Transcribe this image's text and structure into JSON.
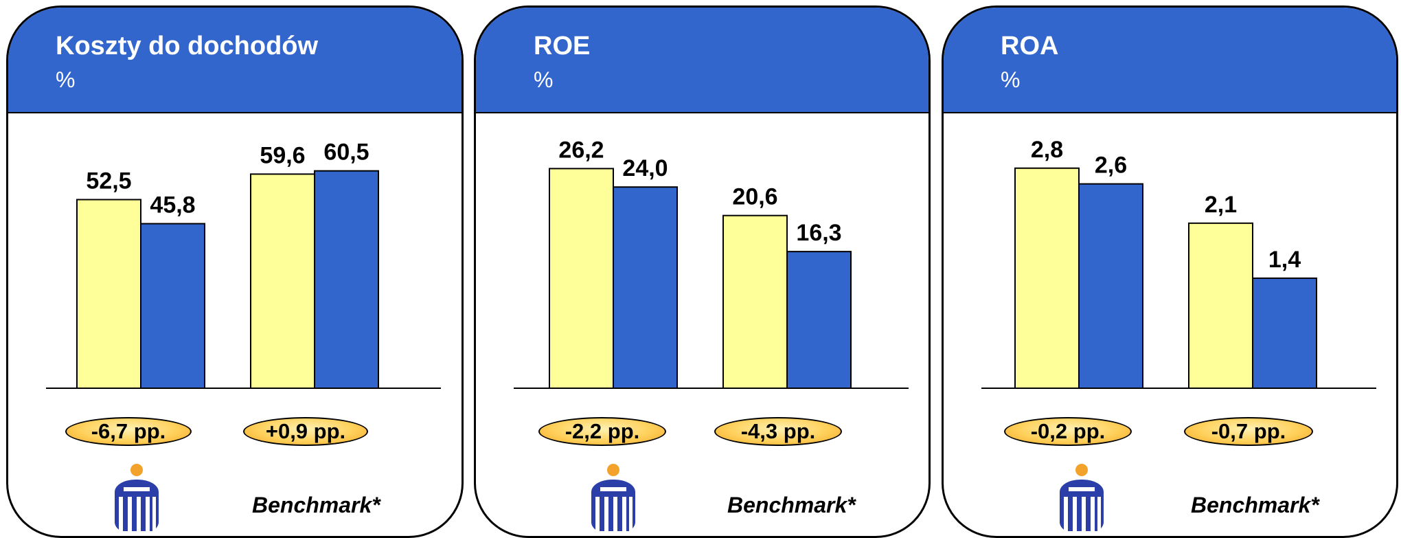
{
  "colors": {
    "header": "#3366cc",
    "pko_bar": "#ffff99",
    "benchmark_bar": "#3366cc",
    "pill": "#ffc94d",
    "logo": "#2c3fa8",
    "logo_dot": "#f3a22c"
  },
  "icons": {
    "logo": "pko-logo-icon"
  },
  "chart_data": [
    {
      "type": "bar",
      "title": "Koszty do dochodów",
      "unit": "%",
      "group_labels": [
        "",
        "Benchmark*"
      ],
      "series": [
        {
          "values": [
            52.5,
            59.6
          ],
          "labels": [
            "52,5",
            "59,6"
          ]
        },
        {
          "values": [
            45.8,
            60.5
          ],
          "labels": [
            "45,8",
            "60,5"
          ]
        }
      ],
      "differences": [
        "-6,7 pp.",
        "+0,9 pp."
      ],
      "ylim": [
        0,
        70
      ],
      "grid": false
    },
    {
      "type": "bar",
      "title": "ROE",
      "unit": "%",
      "group_labels": [
        "",
        "Benchmark*"
      ],
      "series": [
        {
          "values": [
            26.2,
            20.6
          ],
          "labels": [
            "26,2",
            "20,6"
          ]
        },
        {
          "values": [
            24.0,
            16.3
          ],
          "labels": [
            "24,0",
            "16,3"
          ]
        }
      ],
      "differences": [
        "-2,2 pp.",
        "-4,3 pp."
      ],
      "ylim": [
        0,
        30
      ],
      "grid": false
    },
    {
      "type": "bar",
      "title": "ROA",
      "unit": "%",
      "group_labels": [
        "",
        "Benchmark*"
      ],
      "series": [
        {
          "values": [
            2.8,
            2.1
          ],
          "labels": [
            "2,8",
            "2,1"
          ]
        },
        {
          "values": [
            2.6,
            1.4
          ],
          "labels": [
            "2,6",
            "1,4"
          ]
        }
      ],
      "differences": [
        "-0,2 pp.",
        "-0,7 pp."
      ],
      "ylim": [
        0,
        3.2
      ],
      "grid": false
    }
  ]
}
